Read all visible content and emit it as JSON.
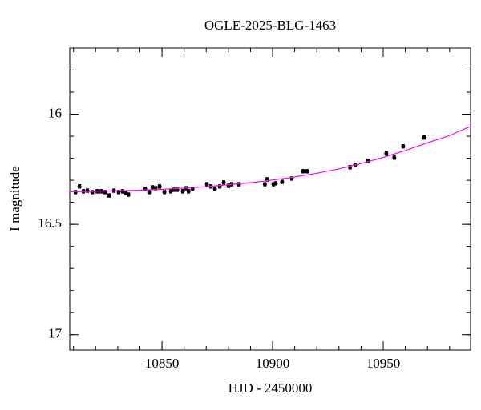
{
  "chart_data": {
    "type": "scatter",
    "title": "OGLE-2025-BLG-1463",
    "x_label": "HJD - 2450000",
    "y_label": "I magnitude",
    "xlim": [
      10808.3,
      10989.5
    ],
    "ylim": [
      15.7,
      17.07
    ],
    "invert_y": true,
    "xticks": [
      10850,
      10900,
      10950
    ],
    "xminorticks": [
      10810,
      10820,
      10830,
      10840,
      10850,
      10860,
      10870,
      10880,
      10890,
      10900,
      10910,
      10920,
      10930,
      10940,
      10950,
      10960,
      10970,
      10980
    ],
    "yticks": [
      16,
      16.5,
      17
    ],
    "yminorticks": [
      15.8,
      15.9,
      16,
      16.1,
      16.2,
      16.3,
      16.4,
      16.5,
      16.6,
      16.7,
      16.8,
      16.9,
      17
    ],
    "series": [
      {
        "color": "#000000",
        "x": [
          10810.9,
          10812.7,
          10814.5,
          10816.3,
          10818.5,
          10820.7,
          10822.5,
          10824.3,
          10826.1,
          10828.3,
          10830.4,
          10832.2,
          10833.7,
          10834.8,
          10842.4,
          10844.2,
          10845.7,
          10847.1,
          10848.9,
          10851.1,
          10854.0,
          10855.4,
          10856.9,
          10859.4,
          10860.9,
          10862.0,
          10863.8,
          10870.3,
          10872.1,
          10873.9,
          10876.1,
          10877.9,
          10880.1,
          10881.5,
          10884.8,
          10896.5,
          10897.5,
          10900.4,
          10901.4,
          10904.3,
          10908.7,
          10913.8,
          10915.6,
          10935.0,
          10937.3,
          10943.1,
          10951.4,
          10955.0,
          10959.0,
          10968.5
        ],
        "values": [
          16.354,
          16.328,
          16.35,
          16.347,
          16.354,
          16.35,
          16.35,
          16.354,
          16.369,
          16.347,
          16.354,
          16.35,
          16.358,
          16.365,
          16.339,
          16.354,
          16.332,
          16.336,
          16.328,
          16.354,
          16.35,
          16.343,
          16.343,
          16.35,
          16.336,
          16.35,
          16.339,
          16.318,
          16.328,
          16.339,
          16.328,
          16.31,
          16.325,
          16.318,
          16.318,
          16.318,
          16.296,
          16.318,
          16.314,
          16.307,
          16.292,
          16.259,
          16.259,
          16.241,
          16.23,
          16.212,
          16.179,
          16.197,
          16.146,
          16.106
        ],
        "errors": [
          0.008,
          0.008,
          0.008,
          0.008,
          0.008,
          0.008,
          0.008,
          0.008,
          0.008,
          0.008,
          0.008,
          0.008,
          0.008,
          0.008,
          0.008,
          0.008,
          0.008,
          0.008,
          0.008,
          0.008,
          0.008,
          0.008,
          0.008,
          0.008,
          0.008,
          0.008,
          0.008,
          0.008,
          0.008,
          0.008,
          0.008,
          0.008,
          0.008,
          0.008,
          0.008,
          0.008,
          0.008,
          0.008,
          0.008,
          0.008,
          0.008,
          0.008,
          0.008,
          0.008,
          0.008,
          0.008,
          0.008,
          0.008,
          0.008,
          0.008
        ]
      },
      {
        "color": "#ff00ff",
        "line": true,
        "x": [
          10808.3,
          10820,
          10830,
          10840,
          10850,
          10860,
          10870,
          10880,
          10890,
          10900,
          10910,
          10920,
          10930,
          10940,
          10950,
          10960,
          10970,
          10980,
          10989.5
        ],
        "values": [
          16.352,
          16.35,
          16.348,
          16.345,
          16.341,
          16.336,
          16.329,
          16.32,
          16.311,
          16.299,
          16.285,
          16.268,
          16.248,
          16.224,
          16.196,
          16.165,
          16.13,
          16.097,
          16.055
        ]
      }
    ]
  }
}
